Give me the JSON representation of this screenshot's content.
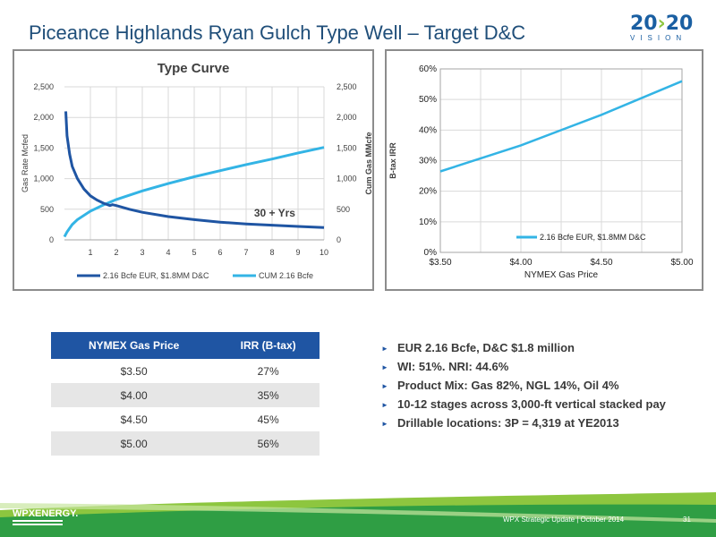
{
  "slide": {
    "title": "Piceance Highlands Ryan Gulch Type Well – Target D&C",
    "footer": "WPX Strategic Update | October 2014",
    "page_number": "31",
    "logo_text_1": "20",
    "logo_text_2": "20",
    "logo_sub": "VISION",
    "logo_arrow": "›",
    "brand": "WPXENERGY."
  },
  "table": {
    "headers": [
      "NYMEX Gas Price",
      "IRR (B-tax)"
    ],
    "rows": [
      [
        "$3.50",
        "27%"
      ],
      [
        "$4.00",
        "35%"
      ],
      [
        "$4.50",
        "45%"
      ],
      [
        "$5.00",
        "56%"
      ]
    ]
  },
  "bullets": [
    "EUR 2.16 Bcfe, D&C $1.8 million",
    "WI:  51%. NRI: 44.6%",
    "Product Mix:  Gas 82%, NGL 14%, Oil 4%",
    "10-12 stages across 3,000-ft vertical stacked pay",
    "Drillable locations: 3P = 4,319 at YE2013"
  ],
  "colors": {
    "title": "#1f4e79",
    "dark_series": "#1f55a3",
    "light_series": "#33b4e5",
    "table_header": "#1f55a3",
    "footer_green": "#8dc63f"
  },
  "chart_data": [
    {
      "type": "line",
      "title": "Type Curve",
      "xlabel": "",
      "ylabel": "Gas Rate Mcfed",
      "y2label": "Cum Gas MMcfe",
      "x_ticks": [
        "1",
        "2",
        "3",
        "4",
        "5",
        "6",
        "7",
        "8",
        "9",
        "10"
      ],
      "xlim": [
        0,
        10
      ],
      "ylim": [
        0,
        2500
      ],
      "y2lim": [
        0,
        2500
      ],
      "y_ticks": [
        "0",
        "500",
        "1,000",
        "1,500",
        "2,000",
        "2,500"
      ],
      "y2_ticks": [
        "0",
        "500",
        "1,000",
        "1,500",
        "2,000",
        "2,500"
      ],
      "annotation": "30 + Yrs",
      "grid": true,
      "legend_position": "bottom",
      "series": [
        {
          "name": "2.16 Bcfe EUR, $1.8MM D&C",
          "axis": "left",
          "x": [
            0.05,
            0.1,
            0.2,
            0.3,
            0.5,
            0.75,
            1.0,
            1.25,
            1.5,
            1.75,
            1.85,
            2.0,
            2.5,
            3.0,
            4.0,
            5.0,
            6.0,
            7.0,
            8.0,
            9.0,
            10.0
          ],
          "y": [
            2100,
            1700,
            1400,
            1200,
            1000,
            830,
            720,
            650,
            600,
            560,
            575,
            560,
            500,
            450,
            380,
            330,
            290,
            260,
            240,
            220,
            200
          ]
        },
        {
          "name": "CUM 2.16 Bcfe",
          "axis": "right",
          "x": [
            0.0,
            0.1,
            0.3,
            0.5,
            1.0,
            1.5,
            2.0,
            3.0,
            4.0,
            5.0,
            6.0,
            7.0,
            8.0,
            9.0,
            10.0
          ],
          "y": [
            50,
            130,
            250,
            330,
            470,
            570,
            660,
            800,
            920,
            1030,
            1130,
            1230,
            1320,
            1420,
            1510
          ]
        }
      ]
    },
    {
      "type": "line",
      "title": "",
      "xlabel": "NYMEX Gas Price",
      "ylabel": "B-tax IRR",
      "categories": [
        "$3.50",
        "$4.00",
        "$4.50",
        "$5.00"
      ],
      "x": [
        3.5,
        4.0,
        4.5,
        5.0
      ],
      "xlim": [
        3.5,
        5.0
      ],
      "ylim": [
        0,
        60
      ],
      "y_ticks": [
        "0%",
        "10%",
        "20%",
        "30%",
        "40%",
        "50%",
        "60%"
      ],
      "grid": true,
      "legend_position": "bottom-right",
      "series": [
        {
          "name": "2.16 Bcfe EUR, $1.8MM D&C",
          "values": [
            26.5,
            35,
            45,
            56
          ]
        }
      ]
    }
  ]
}
